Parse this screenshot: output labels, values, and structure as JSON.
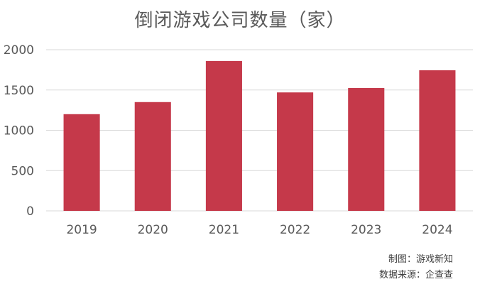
{
  "chart_data": {
    "type": "bar",
    "title": "倒闭游戏公司数量（家）",
    "categories": [
      "2019",
      "2020",
      "2021",
      "2022",
      "2023",
      "2024"
    ],
    "values": [
      1200,
      1350,
      1860,
      1470,
      1525,
      1745
    ],
    "ylim": [
      0,
      2000
    ],
    "yticks": [
      0,
      500,
      1000,
      1500,
      2000
    ],
    "grid": true,
    "bar_color": "#c5394a",
    "xlabel": "",
    "ylabel": ""
  },
  "footer": {
    "credit": "制图：游戏新知",
    "source": "数据来源：企查查"
  }
}
